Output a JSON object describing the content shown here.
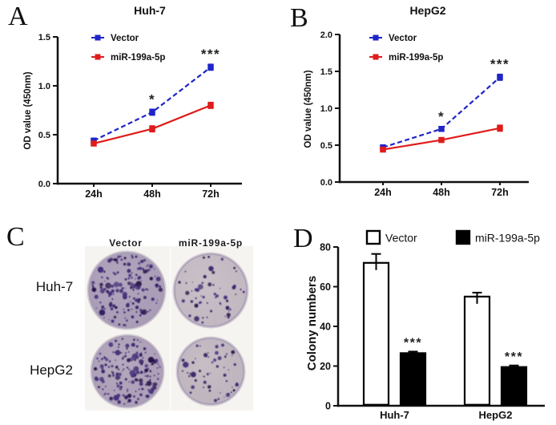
{
  "panels": {
    "a": {
      "letter": "A"
    },
    "b": {
      "letter": "B"
    },
    "c": {
      "letter": "C"
    },
    "d": {
      "letter": "D"
    }
  },
  "colors": {
    "vector_blue": "#1f25c8",
    "mir_red": "#e01b1b",
    "axis": "#111111",
    "colony_purple": "#31175e"
  },
  "chart_data": [
    {
      "id": "A",
      "type": "line",
      "title": "Huh-7",
      "ylabel": "OD value (450nm)",
      "categories": [
        "24h",
        "48h",
        "72h"
      ],
      "ylim": [
        0,
        1.5
      ],
      "yticks": [
        "0.0",
        "0.5",
        "1.0",
        "1.5"
      ],
      "series": [
        {
          "name": "Vector",
          "color": "#1f25c8",
          "dash": true,
          "values": [
            0.44,
            0.73,
            1.19
          ],
          "errors": [
            0.02,
            0.03,
            0.03
          ]
        },
        {
          "name": "miR-199a-5p",
          "color": "#e01b1b",
          "dash": false,
          "values": [
            0.41,
            0.56,
            0.8
          ],
          "errors": [
            0.02,
            0.03,
            0.03
          ]
        }
      ],
      "annotations": [
        {
          "cat": 1,
          "text": "*"
        },
        {
          "cat": 2,
          "text": "***"
        }
      ]
    },
    {
      "id": "B",
      "type": "line",
      "title": "HepG2",
      "ylabel": "OD value (450nm)",
      "categories": [
        "24h",
        "48h",
        "72h"
      ],
      "ylim": [
        0,
        2.0
      ],
      "yticks": [
        "0.0",
        "0.5",
        "1.0",
        "1.5",
        "2.0"
      ],
      "series": [
        {
          "name": "Vector",
          "color": "#1f25c8",
          "dash": true,
          "values": [
            0.47,
            0.72,
            1.42
          ],
          "errors": [
            0.02,
            0.03,
            0.04
          ]
        },
        {
          "name": "miR-199a-5p",
          "color": "#e01b1b",
          "dash": false,
          "values": [
            0.44,
            0.57,
            0.73
          ],
          "errors": [
            0.02,
            0.03,
            0.04
          ]
        }
      ],
      "annotations": [
        {
          "cat": 1,
          "text": "*"
        },
        {
          "cat": 2,
          "text": "***"
        }
      ]
    },
    {
      "id": "C",
      "type": "colony_images",
      "columns": [
        "Vector",
        "miR-199a-5p"
      ],
      "rows": [
        "Huh-7",
        "HepG2"
      ],
      "dishes": [
        {
          "row": "Huh-7",
          "col": "Vector",
          "colony_density": "high"
        },
        {
          "row": "Huh-7",
          "col": "miR-199a-5p",
          "colony_density": "low"
        },
        {
          "row": "HepG2",
          "col": "Vector",
          "colony_density": "high"
        },
        {
          "row": "HepG2",
          "col": "miR-199a-5p",
          "colony_density": "low"
        }
      ]
    },
    {
      "id": "D",
      "type": "bar",
      "ylabel": "Colony numbers",
      "categories": [
        "Huh-7",
        "HepG2"
      ],
      "ylim": [
        0,
        80
      ],
      "yticks": [
        "0",
        "20",
        "40",
        "60",
        "80"
      ],
      "series": [
        {
          "name": "Vector",
          "fill": "#ffffff",
          "values": [
            72,
            55
          ],
          "errors": [
            4.5,
            2
          ]
        },
        {
          "name": "miR-199a-5p",
          "fill": "#000000",
          "values": [
            26.5,
            19.5
          ],
          "errors": [
            0.8,
            0.8
          ]
        }
      ],
      "annotations": [
        {
          "cat": 0,
          "series": 1,
          "text": "***"
        },
        {
          "cat": 1,
          "series": 1,
          "text": "***"
        }
      ]
    }
  ]
}
